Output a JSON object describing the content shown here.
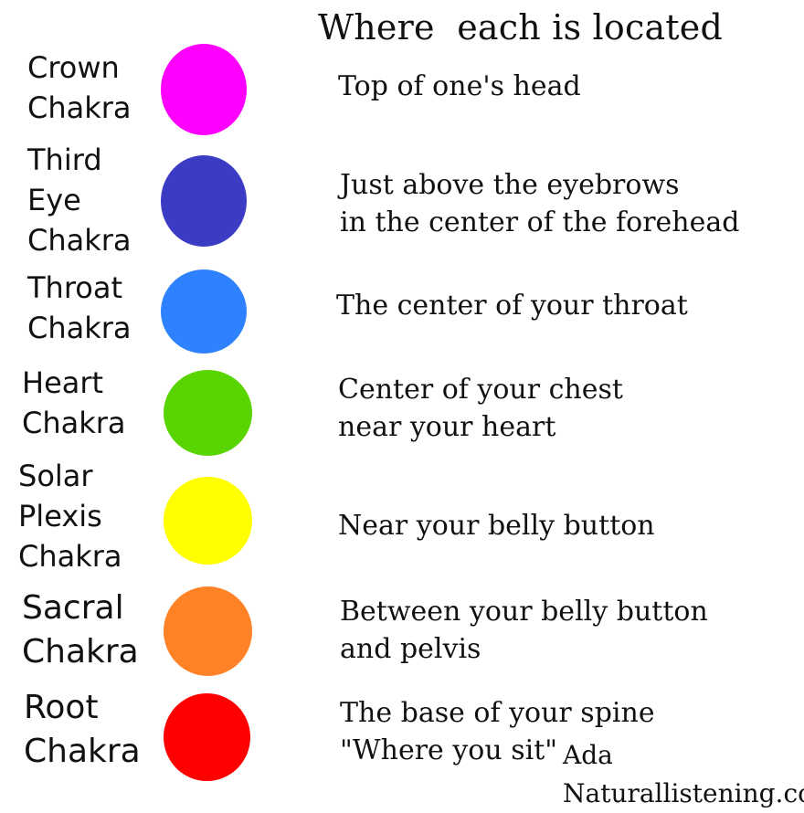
{
  "heading": "Where  each is located",
  "chakras": [
    {
      "name": [
        "Crown",
        "Chakra"
      ],
      "color": "#ff00ff",
      "location": [
        "Top of one's head"
      ]
    },
    {
      "name": [
        "Third",
        "Eye",
        "Chakra"
      ],
      "color": "#3b3bc4",
      "location": [
        "Just above the eyebrows",
        "in the center of the forehead"
      ]
    },
    {
      "name": [
        "Throat",
        "Chakra"
      ],
      "color": "#2e82ff",
      "location": [
        "The center of your throat"
      ]
    },
    {
      "name": [
        "Heart",
        "Chakra"
      ],
      "color": "#58d400",
      "location": [
        "Center of your chest",
        "near your heart"
      ]
    },
    {
      "name": [
        "Solar",
        "Plexis",
        "Chakra"
      ],
      "color": "#ffff00",
      "location": [
        "Near your belly button"
      ]
    },
    {
      "name": [
        "Sacral",
        "Chakra"
      ],
      "color": "#ff8226",
      "location": [
        "Between your belly button",
        "and pelvis"
      ]
    },
    {
      "name": [
        "Root",
        "Chakra"
      ],
      "color": "#ff0000",
      "location": [
        "The base of your spine",
        "\"Where you sit\""
      ]
    }
  ],
  "credit": [
    "Ada",
    "Naturallistening.com"
  ]
}
